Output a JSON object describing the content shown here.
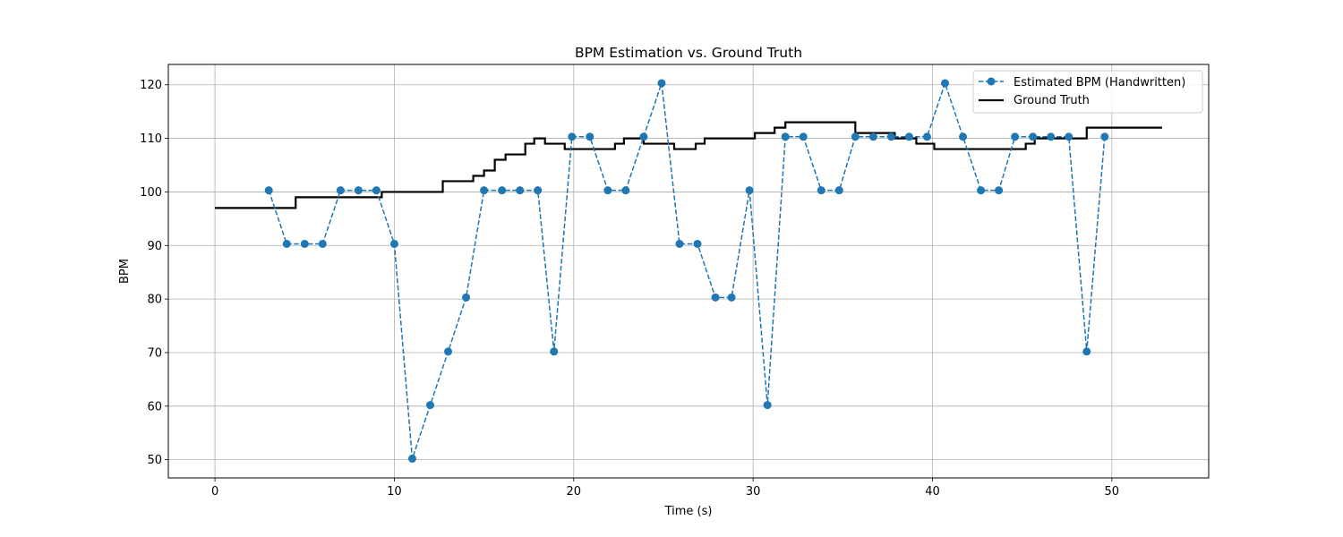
{
  "chart_data": {
    "type": "line",
    "title": "BPM Estimation vs. Ground Truth",
    "xlabel": "Time (s)",
    "ylabel": "BPM",
    "xlim": [
      -2.6,
      55.4
    ],
    "ylim": [
      46.6,
      123.8
    ],
    "xticks": [
      0,
      10,
      20,
      30,
      40,
      50
    ],
    "yticks": [
      50,
      60,
      70,
      80,
      90,
      100,
      110,
      120
    ],
    "grid": true,
    "legend_position": "top-right",
    "colors": {
      "estimated": "#1f77b4",
      "ground_truth": "#000000",
      "grid": "#b0b0b0"
    },
    "series": [
      {
        "name": "Estimated BPM (Handwritten)",
        "style": "dashed-with-markers",
        "x": [
          3,
          4,
          5,
          6,
          7,
          8,
          9,
          10,
          11,
          12,
          13,
          14,
          15,
          16,
          17,
          18,
          18.9,
          19.9,
          20.9,
          21.9,
          22.9,
          23.9,
          24.9,
          25.9,
          26.9,
          27.9,
          28.8,
          29.8,
          30.8,
          31.8,
          32.8,
          33.8,
          34.8,
          35.7,
          36.7,
          37.7,
          38.7,
          39.7,
          40.7,
          41.7,
          42.7,
          43.7,
          44.6,
          45.6,
          46.6,
          47.6,
          48.6,
          49.6
        ],
        "y": [
          100.3,
          90.3,
          90.3,
          90.3,
          100.3,
          100.3,
          100.3,
          90.3,
          50.2,
          60.2,
          70.2,
          80.3,
          100.3,
          100.3,
          100.3,
          100.3,
          70.2,
          110.3,
          110.3,
          100.3,
          100.3,
          110.3,
          120.3,
          90.3,
          90.3,
          80.3,
          80.3,
          100.3,
          60.2,
          110.3,
          110.3,
          100.3,
          100.3,
          110.3,
          110.3,
          110.3,
          110.3,
          110.3,
          120.3,
          110.3,
          100.3,
          100.3,
          110.3,
          110.3,
          110.3,
          110.3,
          70.2,
          110.3
        ]
      },
      {
        "name": "Ground Truth",
        "style": "solid",
        "x": [
          0,
          4.5,
          4.5,
          9.3,
          9.3,
          12.7,
          12.7,
          14.4,
          14.4,
          15,
          15,
          15.6,
          15.6,
          16.2,
          16.2,
          17.3,
          17.3,
          17.8,
          17.8,
          18.4,
          18.4,
          19.5,
          19.5,
          22.3,
          22.3,
          22.8,
          22.8,
          23.9,
          23.9,
          25.6,
          25.6,
          26.8,
          26.8,
          27.3,
          27.3,
          30.1,
          30.1,
          31.2,
          31.2,
          31.8,
          31.8,
          35.7,
          35.7,
          37.9,
          37.9,
          39.1,
          39.1,
          40.1,
          40.1,
          45.2,
          45.2,
          45.7,
          45.7,
          48.6,
          48.6,
          52.8
        ],
        "y": [
          97,
          97,
          99,
          99,
          100,
          100,
          102,
          102,
          103,
          103,
          104,
          104,
          106,
          106,
          107,
          107,
          109,
          109,
          110,
          110,
          109,
          109,
          108,
          108,
          109,
          109,
          110,
          110,
          109,
          109,
          108,
          108,
          109,
          109,
          110,
          110,
          111,
          111,
          112,
          112,
          113,
          113,
          111,
          111,
          110,
          110,
          109,
          109,
          108,
          108,
          109,
          109,
          110,
          110,
          112,
          112
        ]
      }
    ]
  }
}
